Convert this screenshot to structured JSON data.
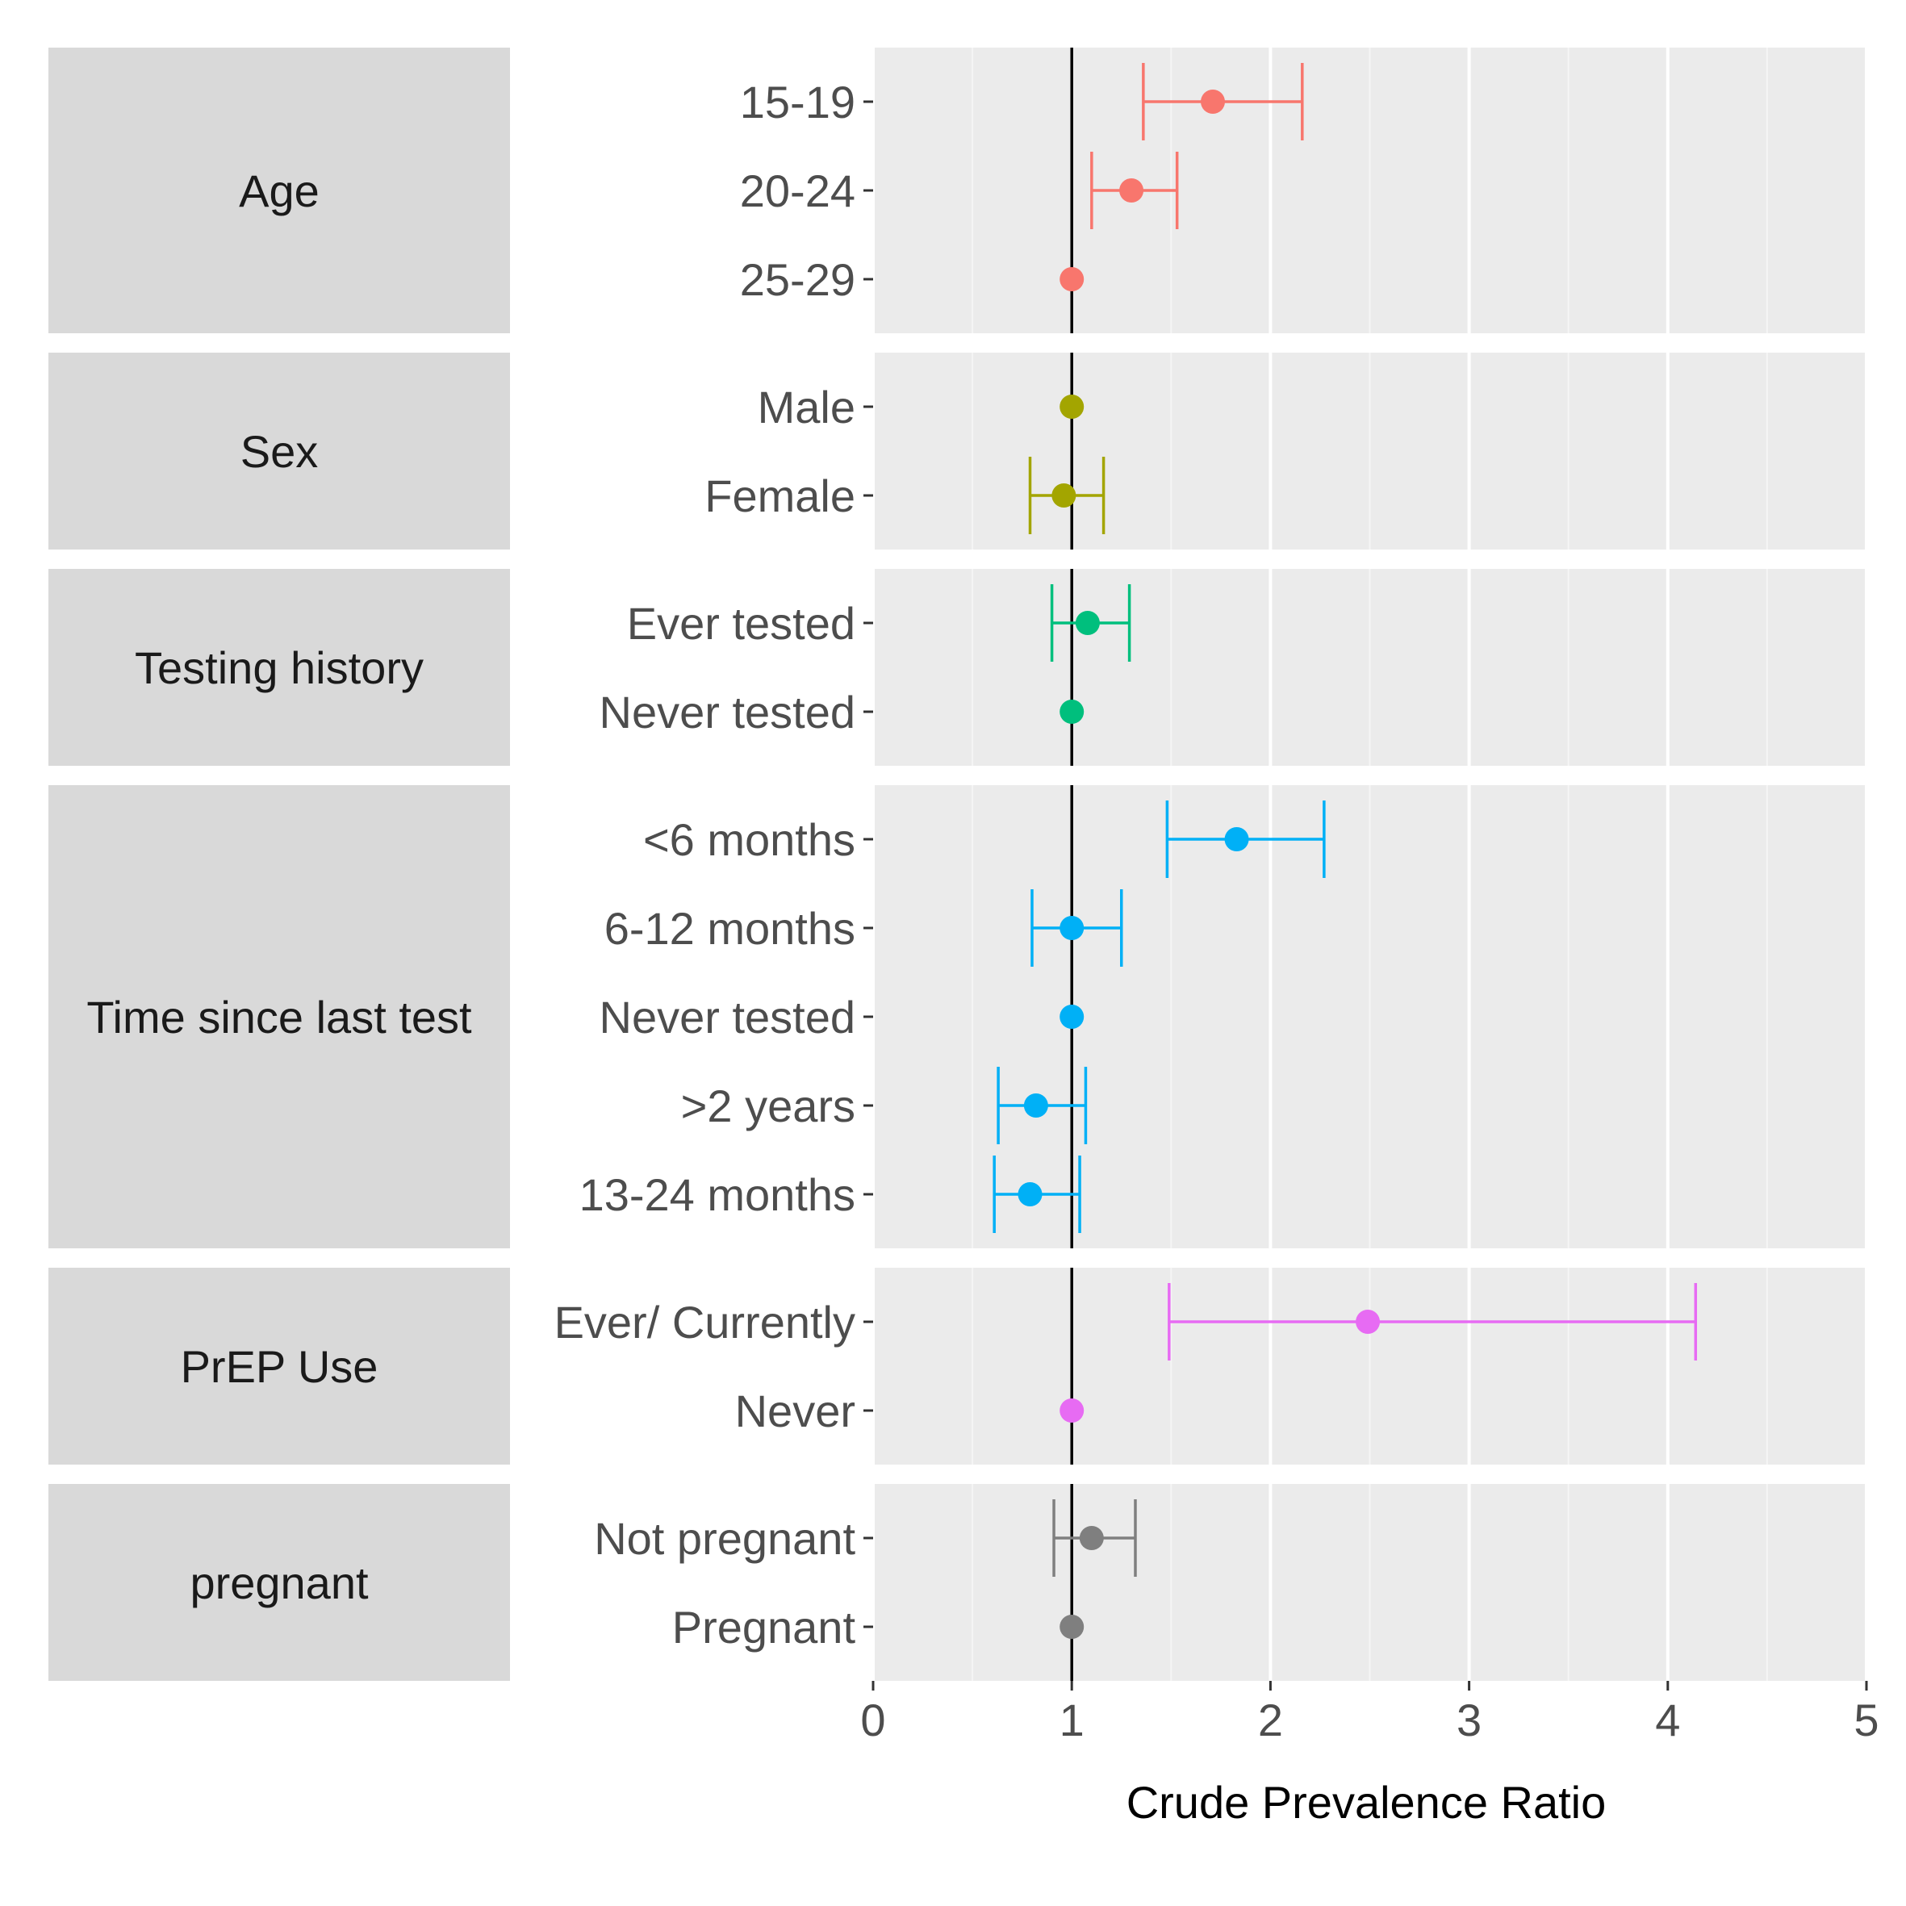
{
  "chart_data": {
    "type": "scatter",
    "subtype": "forest-plot-with-error-bars",
    "xlabel": "Crude Prevalence Ratio",
    "xlim": [
      0,
      5
    ],
    "x_ticks": [
      0,
      1,
      2,
      3,
      4,
      5
    ],
    "reference_line": 1,
    "grid": true,
    "panels": [
      {
        "name": "Age",
        "color": "#F8766D",
        "rows": [
          {
            "label": "15-19",
            "estimate": 1.71,
            "lower": 1.36,
            "upper": 2.16
          },
          {
            "label": "20-24",
            "estimate": 1.3,
            "lower": 1.1,
            "upper": 1.53
          },
          {
            "label": "25-29",
            "estimate": 1.0,
            "lower": null,
            "upper": null
          }
        ]
      },
      {
        "name": "Sex",
        "color": "#A3A500",
        "rows": [
          {
            "label": "Male",
            "estimate": 1.0,
            "lower": null,
            "upper": null
          },
          {
            "label": "Female",
            "estimate": 0.96,
            "lower": 0.79,
            "upper": 1.16
          }
        ]
      },
      {
        "name": "Testing history",
        "color": "#00BF7D",
        "rows": [
          {
            "label": "Ever tested",
            "estimate": 1.08,
            "lower": 0.9,
            "upper": 1.29
          },
          {
            "label": "Never tested",
            "estimate": 1.0,
            "lower": null,
            "upper": null
          }
        ]
      },
      {
        "name": "Time since last test",
        "color": "#00B0F6",
        "rows": [
          {
            "label": "<6 months",
            "estimate": 1.83,
            "lower": 1.48,
            "upper": 2.27
          },
          {
            "label": "6-12 months",
            "estimate": 1.0,
            "lower": 0.8,
            "upper": 1.25
          },
          {
            "label": "Never tested",
            "estimate": 1.0,
            "lower": null,
            "upper": null
          },
          {
            "label": ">2 years",
            "estimate": 0.82,
            "lower": 0.63,
            "upper": 1.07
          },
          {
            "label": "13-24 months",
            "estimate": 0.79,
            "lower": 0.61,
            "upper": 1.04
          }
        ]
      },
      {
        "name": "PrEP Use",
        "color": "#E76BF3",
        "rows": [
          {
            "label": "Ever/ Currently",
            "estimate": 2.49,
            "lower": 1.49,
            "upper": 4.14
          },
          {
            "label": "Never",
            "estimate": 1.0,
            "lower": null,
            "upper": null
          }
        ]
      },
      {
        "name": "pregnant",
        "color": "#7F7F7F",
        "rows": [
          {
            "label": "Not pregnant",
            "estimate": 1.1,
            "lower": 0.91,
            "upper": 1.32
          },
          {
            "label": "Pregnant",
            "estimate": 1.0,
            "lower": null,
            "upper": null
          }
        ]
      }
    ]
  }
}
